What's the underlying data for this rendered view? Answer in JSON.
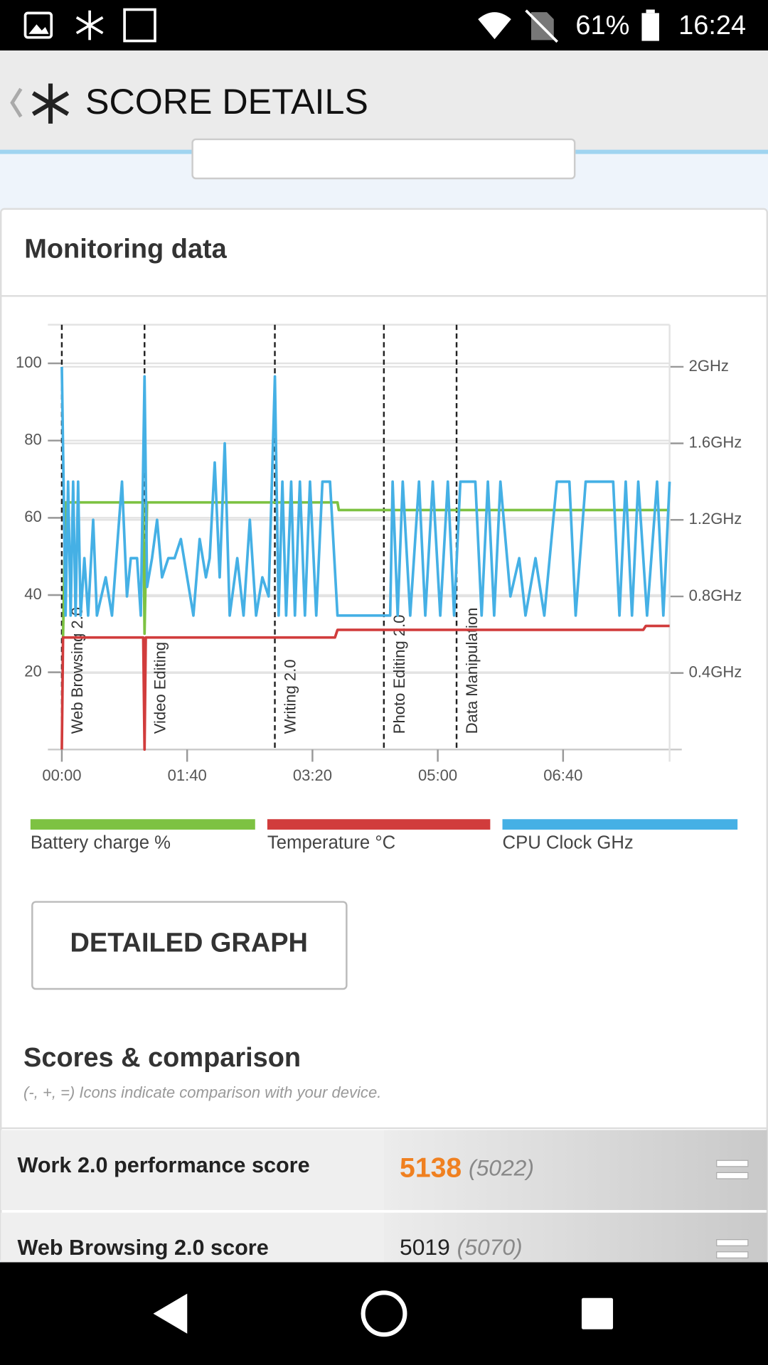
{
  "status_bar": {
    "battery": "61%",
    "time": "16:24"
  },
  "header": {
    "title": "SCORE DETAILS"
  },
  "monitoring": {
    "title": "Monitoring data"
  },
  "chart_data": {
    "type": "line",
    "xlim": [
      0,
      485
    ],
    "xticks": [
      {
        "value": 0,
        "label": "00:00"
      },
      {
        "value": 100,
        "label": "01:40"
      },
      {
        "value": 200,
        "label": "03:20"
      },
      {
        "value": 300,
        "label": "05:00"
      },
      {
        "value": 400,
        "label": "06:40"
      }
    ],
    "ylim": [
      0,
      110
    ],
    "yticks": [
      20,
      40,
      60,
      80,
      100
    ],
    "y2lim": [
      0,
      2.22
    ],
    "y2ticks": [
      {
        "value": 0.4,
        "label": "0.4GHz"
      },
      {
        "value": 0.8,
        "label": "0.8GHz"
      },
      {
        "value": 1.2,
        "label": "1.2GHz"
      },
      {
        "value": 1.6,
        "label": "1.6GHz"
      },
      {
        "value": 2,
        "label": "2GHz"
      }
    ],
    "grid": true,
    "annotations": [
      {
        "x": 0,
        "label": "Web Browsing 2.0"
      },
      {
        "x": 66,
        "label": "Video Editing"
      },
      {
        "x": 170,
        "label": "Writing 2.0"
      },
      {
        "x": 257,
        "label": "Photo Editing 2.0"
      },
      {
        "x": 315,
        "label": "Data Manipulation"
      }
    ],
    "series": [
      {
        "name": "Battery charge %",
        "color": "#7dc242",
        "x": [
          1,
          3,
          65,
          66,
          68,
          220,
          221,
          485
        ],
        "values": [
          29,
          64,
          64,
          30,
          64,
          64,
          62,
          62
        ]
      },
      {
        "name": "Temperature °C",
        "color": "#d13c3c",
        "x": [
          0,
          1,
          65,
          66,
          67,
          218,
          220,
          464,
          466,
          485
        ],
        "values": [
          0,
          29,
          29,
          0,
          29,
          29,
          31,
          31,
          32,
          32
        ]
      },
      {
        "name": "CPU Clock GHz",
        "color": "#45b0e5",
        "axis": "y2",
        "x": [
          0,
          3,
          5,
          7,
          9,
          11,
          13,
          15,
          18,
          21,
          25,
          28,
          35,
          40,
          48,
          52,
          55,
          60,
          63,
          66,
          68,
          72,
          76,
          80,
          85,
          90,
          95,
          100,
          105,
          110,
          115,
          118,
          122,
          126,
          130,
          134,
          140,
          145,
          150,
          155,
          160,
          165,
          170,
          173,
          176,
          179,
          183,
          186,
          190,
          194,
          198,
          203,
          208,
          214,
          220,
          250,
          262,
          264,
          268,
          272,
          278,
          285,
          290,
          296,
          302,
          308,
          313,
          318,
          330,
          335,
          340,
          345,
          350,
          358,
          365,
          370,
          378,
          385,
          395,
          405,
          410,
          418,
          440,
          445,
          450,
          455,
          460,
          467,
          475,
          480,
          485
        ],
        "values": [
          2.0,
          0.7,
          1.4,
          0.7,
          1.4,
          0.7,
          1.4,
          0.7,
          1.0,
          0.7,
          1.2,
          0.7,
          0.9,
          0.7,
          1.4,
          0.8,
          1.0,
          1.0,
          0.7,
          1.95,
          0.85,
          1.0,
          1.2,
          0.9,
          1.0,
          1.0,
          1.1,
          0.9,
          0.7,
          1.1,
          0.9,
          1.0,
          1.5,
          0.9,
          1.6,
          0.7,
          1.0,
          0.7,
          1.2,
          0.7,
          0.9,
          0.8,
          1.95,
          0.7,
          1.4,
          0.7,
          1.4,
          0.7,
          1.4,
          0.7,
          1.4,
          0.7,
          1.4,
          1.4,
          0.7,
          0.7,
          0.7,
          1.4,
          0.7,
          1.4,
          0.7,
          1.4,
          0.7,
          1.4,
          0.7,
          1.4,
          0.7,
          1.4,
          1.4,
          0.7,
          1.4,
          0.7,
          1.4,
          0.8,
          1.0,
          0.7,
          1.0,
          0.7,
          1.4,
          1.4,
          0.7,
          1.4,
          1.4,
          0.7,
          1.4,
          0.7,
          1.4,
          0.7,
          1.4,
          0.7,
          1.4
        ]
      }
    ]
  },
  "button": {
    "label": "DETAILED GRAPH"
  },
  "scores": {
    "title": "Scores & comparison",
    "subtitle": "(-, +, =) Icons indicate comparison with your device.",
    "rows": [
      {
        "label": "Work 2.0 performance score",
        "score": 5138,
        "comparison": "(5022)"
      },
      {
        "label": "Web Browsing 2.0 score",
        "score": 5019,
        "comparison": "(5070)"
      }
    ]
  }
}
